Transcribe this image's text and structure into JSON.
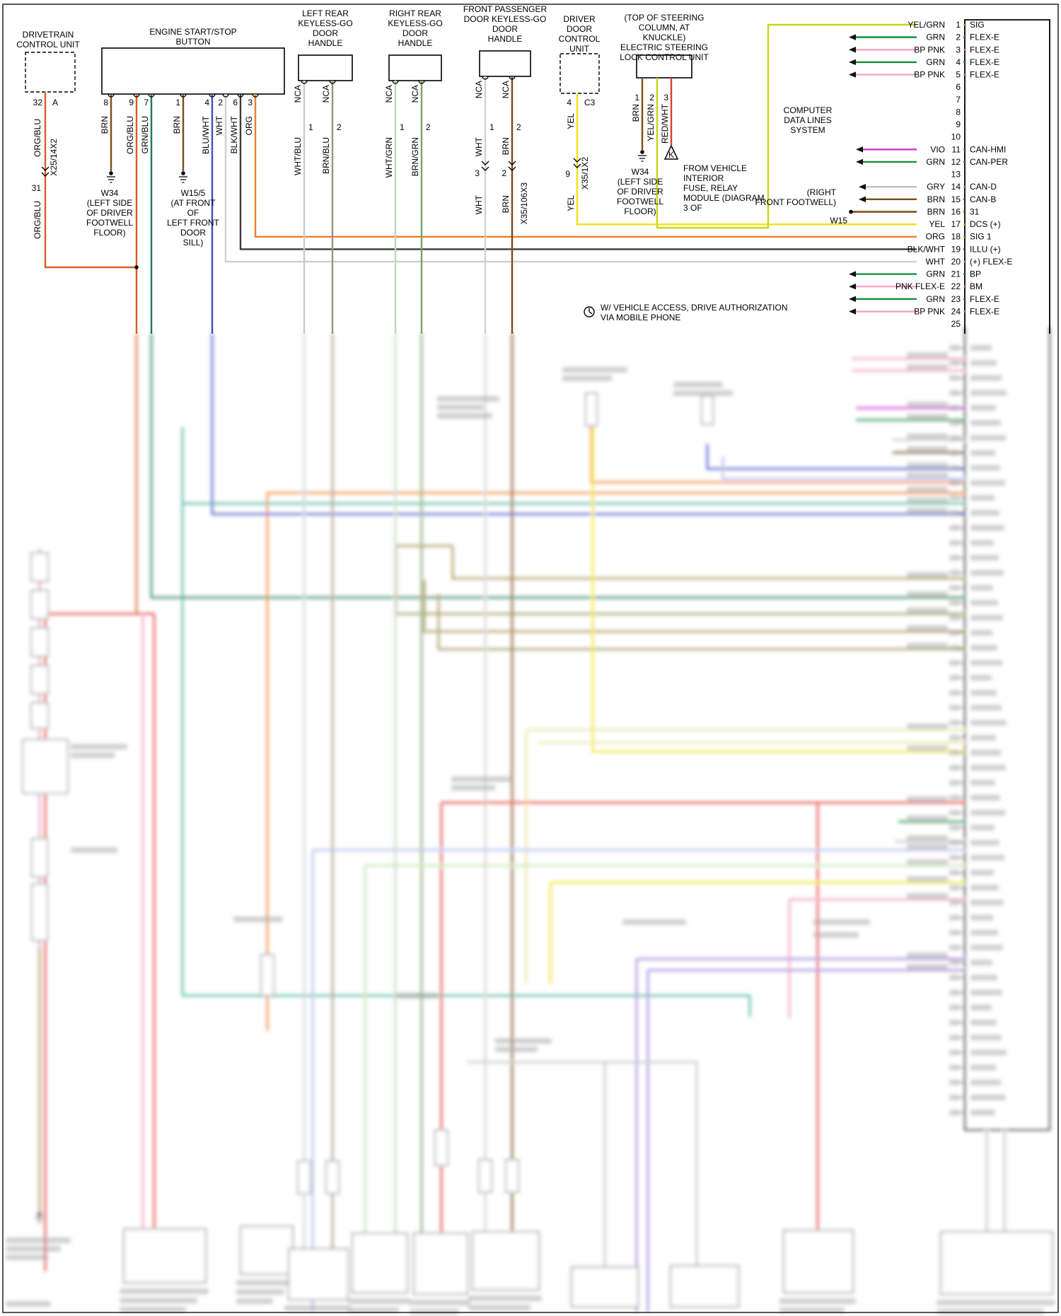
{
  "wire_colors": {
    "ORG_BLU": "#d65f28",
    "BRN": "#7d4b17",
    "GRN_BLU": "#1f7a52",
    "BLU_WHT": "#3d4ec6",
    "WHT": "#cfcfcf",
    "BLK_WHT": "#3c3c3c",
    "ORG": "#ef7e28",
    "WHT_BLU": "#c3cbd8",
    "BRN_BLU": "#a08f7a",
    "WHT_GRN": "#c2d3ba",
    "BRN_GRN": "#7d9f63",
    "YEL": "#f0e014",
    "YEL_GRN": "#c6d812",
    "RED_WHT": "#e0392f",
    "VIO": "#d02fd0",
    "GRY": "#c0c0c0",
    "GRN": "#12913a",
    "PNK": "#f2a9c4",
    "RED": "#e23b30",
    "OLV": "#9c8d4a",
    "TEAL": "#43b097",
    "LT_BLU": "#a8b8ea",
    "LT_GRN": "#bfe3a8",
    "PPL": "#9a7fd8",
    "PNK2": "#ef9ab5",
    "PALE_YEL": "#e6e296"
  },
  "components": {
    "drivetrain": {
      "title": "DRIVETRAIN\nCONTROL UNIT",
      "pin": "32",
      "pin_letter": "A",
      "wire_label_1": "ORG/BLU",
      "connector_label": "X25/14X2",
      "pin_2": "31",
      "wire_label_2": "ORG/BLU"
    },
    "engine_button": {
      "title": "ENGINE START/STOP\nBUTTON",
      "pins": [
        "8",
        "9",
        "7",
        "1",
        "4",
        "2",
        "6",
        "3"
      ],
      "wire_labels": [
        "BRN",
        "ORG/BLU",
        "GRN/BLU",
        "BRN",
        "BLU/WHT",
        "WHT",
        "BLK/WHT",
        "ORG"
      ]
    },
    "ground_w34_engine": {
      "name": "W34",
      "location": "(LEFT SIDE\nOF DRIVER\nFOOTWELL\nFLOOR)"
    },
    "ground_w15_5": {
      "name": "W15/5",
      "location": "(AT FRONT\nOF\nLEFT FRONT\nDOOR\nSILL)"
    },
    "left_rear_handle": {
      "title": "LEFT REAR\nKEYLESS-GO\nDOOR\nHANDLE",
      "top_labels": [
        "NCA",
        "NCA"
      ],
      "pins": [
        "1",
        "2"
      ],
      "wire_labels": [
        "WHT/BLU",
        "BRN/BLU"
      ]
    },
    "right_rear_handle": {
      "title": "RIGHT REAR\nKEYLESS-GO\nDOOR\nHANDLE",
      "top_labels": [
        "NCA",
        "NCA"
      ],
      "pins": [
        "1",
        "2"
      ],
      "wire_labels": [
        "WHT/GRN",
        "BRN/GRN"
      ]
    },
    "front_passenger_handle": {
      "title": "FRONT PASSENGER\nDOOR KEYLESS-GO\nDOOR\nHANDLE",
      "top_labels": [
        "NCA",
        "NCA"
      ],
      "pins": [
        "1",
        "2"
      ],
      "wire_labels": [
        "WHT",
        "BRN"
      ],
      "connector_pins": [
        "3",
        "2"
      ],
      "connector_label": "X35/106X3",
      "wire_labels_2": [
        "WHT",
        "BRN"
      ]
    },
    "driver_door": {
      "title": "DRIVER\nDOOR\nCONTROL\nUNIT",
      "pins": [
        "4",
        "C3"
      ],
      "wire_label_1": "YEL",
      "connector_pin": "9",
      "connector_label": "X35/1X2",
      "wire_label_2": "YEL"
    },
    "steering_lock": {
      "title": "(TOP OF STEERING\nCOLUMN, AT KNUCKLE)\nELECTRIC STEERING\nLOCK CONTROL UNIT",
      "pins": [
        "1",
        "2",
        "3"
      ],
      "wire_labels": [
        "BRN",
        "YEL/GRN",
        "RED/WHT"
      ]
    },
    "ground_w34_steering": {
      "name": "W34",
      "location": "(LEFT SIDE\nOF DRIVER\nFOOTWELL\nFLOOR)"
    },
    "k_callout": {
      "symbol": "K",
      "note": "FROM VEHICLE\nINTERIOR\nFUSE, RELAY\nMODULE (DIAGRAM\n3 OF"
    },
    "computer_data_lines": {
      "label": "COMPUTER\nDATA LINES\nSYSTEM"
    },
    "right_front_footwell": {
      "label": "(RIGHT\nFRONT FOOTWELL)",
      "ground": "W15"
    },
    "mobile_note": {
      "text": "W/ VEHICLE ACCESS, DRIVE AUTHORIZATION\nVIA MOBILE PHONE"
    }
  },
  "connector": {
    "rows": [
      {
        "pin": "1",
        "wire": "YEL/GRN",
        "wire_key": "YEL_GRN",
        "label": "SIG",
        "arrow": false
      },
      {
        "pin": "2",
        "wire": "GRN",
        "wire_key": "GRN",
        "label": "FLEX-E",
        "arrow": true
      },
      {
        "pin": "3",
        "wire": "BP PNK",
        "wire_key": "PNK",
        "label": "FLEX-E",
        "arrow": true
      },
      {
        "pin": "4",
        "wire": "GRN",
        "wire_key": "GRN",
        "label": "FLEX-E",
        "arrow": true
      },
      {
        "pin": "5",
        "wire": "BP PNK",
        "wire_key": "PNK",
        "label": "FLEX-E",
        "arrow": true
      },
      {
        "pin": "6"
      },
      {
        "pin": "7"
      },
      {
        "pin": "8"
      },
      {
        "pin": "9"
      },
      {
        "pin": "10"
      },
      {
        "pin": "11",
        "wire": "VIO",
        "wire_key": "VIO",
        "label": "CAN-HMI",
        "arrow": true
      },
      {
        "pin": "12",
        "wire": "GRN",
        "wire_key": "GRN",
        "label": "CAN-PER",
        "arrow": true
      },
      {
        "pin": "13"
      },
      {
        "pin": "14",
        "wire": "GRY",
        "wire_key": "GRY",
        "label": "CAN-D",
        "arrow": true
      },
      {
        "pin": "15",
        "wire": "BRN",
        "wire_key": "BRN",
        "label": "CAN-B",
        "arrow": true
      },
      {
        "pin": "16",
        "wire": "BRN",
        "wire_key": "BRN",
        "label": "31",
        "arrow": false
      },
      {
        "pin": "17",
        "wire": "YEL",
        "wire_key": "YEL",
        "label": "DCS (+)",
        "arrow": false
      },
      {
        "pin": "18",
        "wire": "ORG",
        "wire_key": "ORG",
        "label": "SIG 1",
        "arrow": false
      },
      {
        "pin": "19",
        "wire": "BLK/WHT",
        "wire_key": "BLK_WHT",
        "label": "ILLU (+)",
        "arrow": false
      },
      {
        "pin": "20",
        "wire": "WHT",
        "wire_key": "WHT",
        "label": "(+) FLEX-E",
        "arrow": false
      },
      {
        "pin": "21",
        "wire": "GRN",
        "wire_key": "GRN",
        "label": "BP",
        "arrow": true
      },
      {
        "pin": "22",
        "wire": "PNK FLEX-E",
        "wire_key": "PNK",
        "label": "BM",
        "arrow": true
      },
      {
        "pin": "23",
        "wire": "GRN",
        "wire_key": "GRN",
        "label": "FLEX-E",
        "arrow": true
      },
      {
        "pin": "24",
        "wire": "BP PNK",
        "wire_key": "PNK",
        "label": "FLEX-E",
        "arrow": true
      },
      {
        "pin": "25"
      }
    ]
  }
}
